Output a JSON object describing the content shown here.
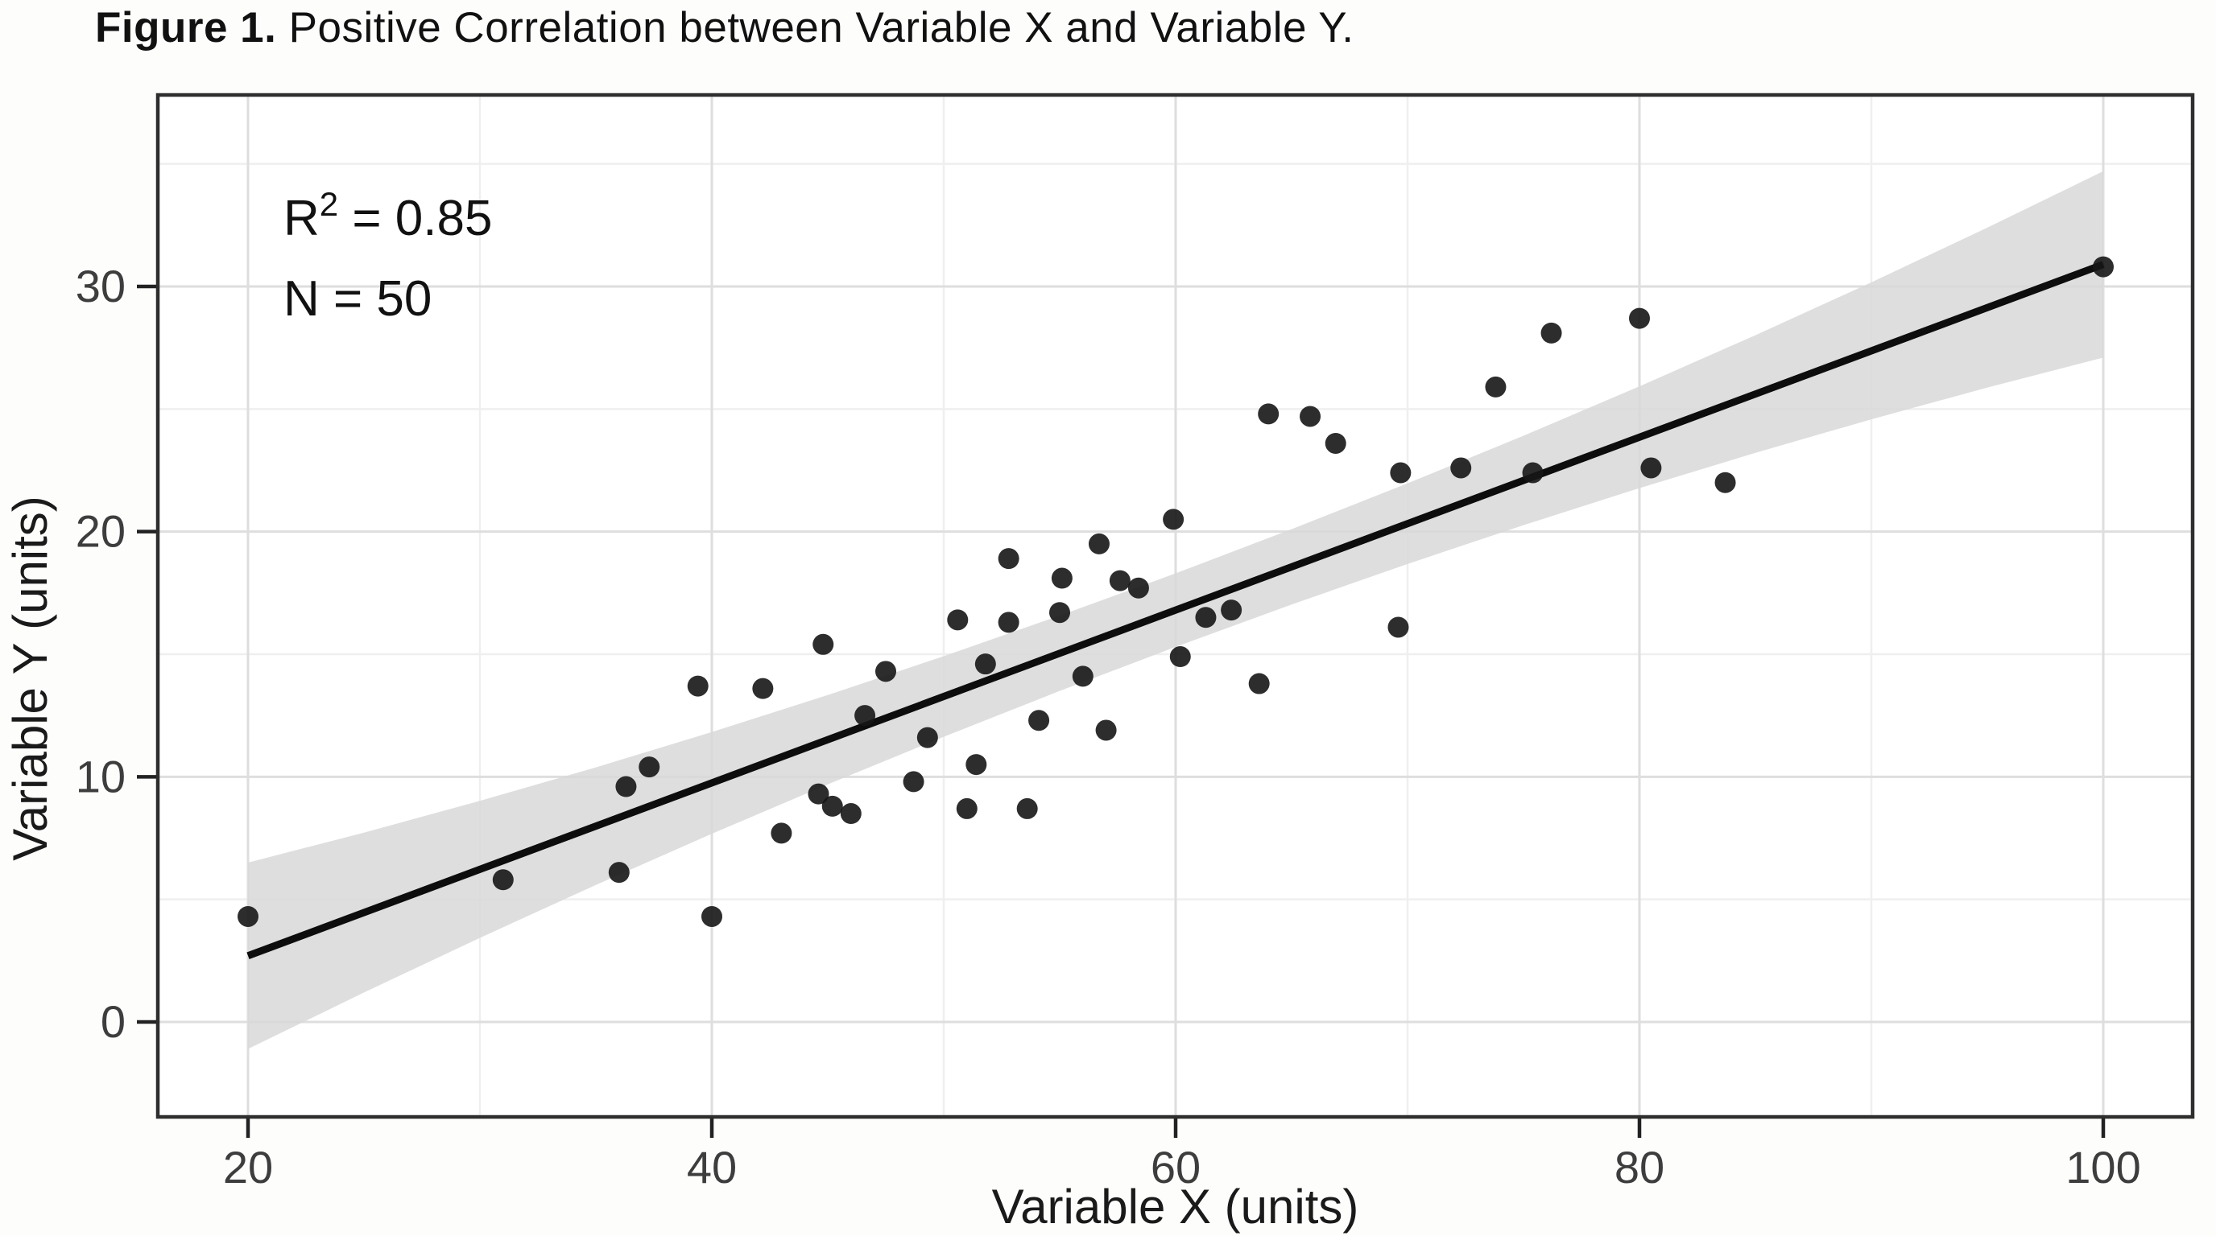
{
  "figure": {
    "title_prefix": "Figure 1.",
    "title_rest": " Positive Correlation between Variable X and Variable Y."
  },
  "annotation": {
    "r2_base": "R",
    "r2_sup": "2",
    "r2_rest": " = 0.85",
    "n_label": "N = 50"
  },
  "chart_data": {
    "type": "scatter",
    "title": "Figure 1. Positive Correlation between Variable X and Variable Y.",
    "xlabel": "Variable X (units)",
    "ylabel": "Variable Y (units)",
    "x_ticks": [
      20,
      40,
      60,
      80,
      100
    ],
    "y_ticks": [
      0,
      10,
      20,
      30
    ],
    "x_minor_ticks": [
      30,
      50,
      70,
      90
    ],
    "y_minor_ticks": [
      5,
      15,
      25,
      35
    ],
    "xlim": [
      16.1,
      103.9
    ],
    "ylim": [
      -3.9,
      37.8
    ],
    "grid": "major+minor",
    "legend": "none",
    "n_points": 50,
    "r_squared": 0.85,
    "annotations": [
      "R² = 0.85",
      "N = 50"
    ],
    "points": [
      [
        20,
        4.3
      ],
      [
        31,
        5.8
      ],
      [
        36,
        6.1
      ],
      [
        36.3,
        9.6
      ],
      [
        37.3,
        10.4
      ],
      [
        39.4,
        13.7
      ],
      [
        40,
        4.3
      ],
      [
        42.2,
        13.6
      ],
      [
        43,
        7.7
      ],
      [
        44.6,
        9.3
      ],
      [
        45.2,
        8.8
      ],
      [
        46,
        8.5
      ],
      [
        44.8,
        15.4
      ],
      [
        46.6,
        12.5
      ],
      [
        47.5,
        14.3
      ],
      [
        48.7,
        9.8
      ],
      [
        49.3,
        11.6
      ],
      [
        50.6,
        16.4
      ],
      [
        51,
        8.7
      ],
      [
        51.4,
        10.5
      ],
      [
        51.8,
        14.6
      ],
      [
        52.8,
        16.3
      ],
      [
        52.8,
        18.9
      ],
      [
        53.6,
        8.7
      ],
      [
        54.1,
        12.3
      ],
      [
        55,
        16.7
      ],
      [
        55.1,
        18.1
      ],
      [
        56,
        14.1
      ],
      [
        57,
        11.9
      ],
      [
        56.7,
        19.5
      ],
      [
        57.6,
        18
      ],
      [
        58.4,
        17.7
      ],
      [
        59.9,
        20.5
      ],
      [
        60.2,
        14.9
      ],
      [
        61.3,
        16.5
      ],
      [
        62.4,
        16.8
      ],
      [
        63.6,
        13.8
      ],
      [
        64,
        24.8
      ],
      [
        65.8,
        24.7
      ],
      [
        66.9,
        23.6
      ],
      [
        69.6,
        16.1
      ],
      [
        69.7,
        22.4
      ],
      [
        72.3,
        22.6
      ],
      [
        73.8,
        25.9
      ],
      [
        75.4,
        22.4
      ],
      [
        76.2,
        28.1
      ],
      [
        80,
        28.7
      ],
      [
        80.5,
        22.6
      ],
      [
        83.7,
        22
      ],
      [
        100,
        30.8
      ]
    ],
    "regression_line": {
      "x_start": 20,
      "y_start": 2.7,
      "x_end": 100,
      "y_end": 30.9
    },
    "confidence_band": {
      "center_halfwidth": 1.5,
      "edge_flare": 2.3,
      "x_start": 20,
      "x_end": 100
    },
    "colors": {
      "point": "#161616",
      "line": "#0d0d0d",
      "band": "#d8d8d8",
      "grid_major": "#dedede",
      "grid_minor": "#efefef",
      "panel_border": "#2e2e2e",
      "tick_label": "#3d3d3d",
      "axis_title": "#1a1a1a",
      "background": "#fdfdfc"
    }
  }
}
